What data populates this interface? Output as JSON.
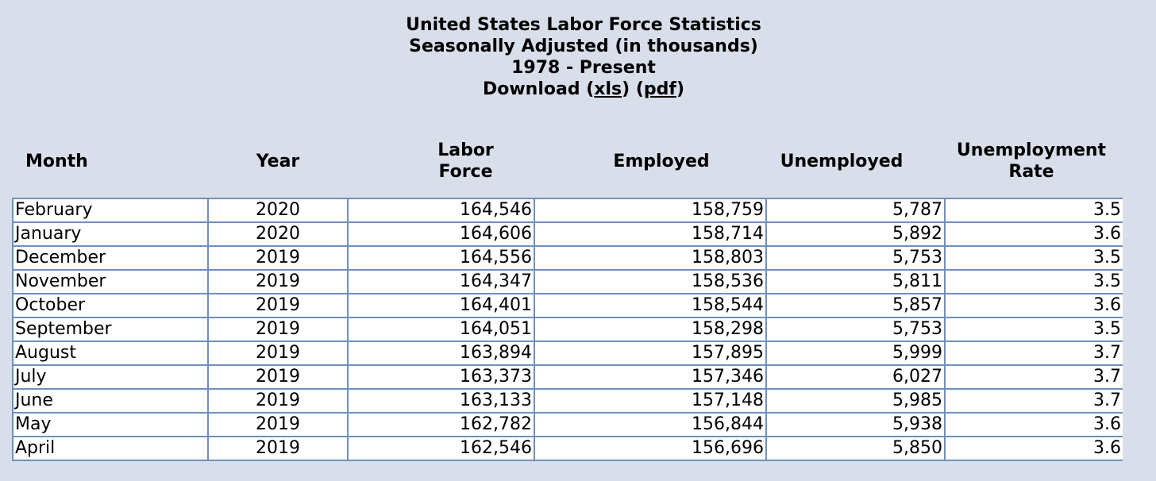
{
  "title": {
    "line1": "United States Labor Force Statistics",
    "line2": "Seasonally Adjusted  (in thousands)",
    "line3": "1978 - Present",
    "download_label": "Download",
    "xls_link": "xls",
    "pdf_link": "pdf"
  },
  "headers": {
    "month": "Month",
    "year": "Year",
    "labor_force_line1": "Labor",
    "labor_force_line2": "Force",
    "employed": "Employed",
    "unemployed": "Unemployed",
    "rate_line1": "Unemployment",
    "rate_line2": "Rate"
  },
  "rows": [
    {
      "month": "February",
      "year": "2020",
      "labor_force": "164,546",
      "employed": "158,759",
      "unemployed": "5,787",
      "rate": "3.5"
    },
    {
      "month": "January",
      "year": "2020",
      "labor_force": "164,606",
      "employed": "158,714",
      "unemployed": "5,892",
      "rate": "3.6"
    },
    {
      "month": "December",
      "year": "2019",
      "labor_force": "164,556",
      "employed": "158,803",
      "unemployed": "5,753",
      "rate": "3.5"
    },
    {
      "month": "November",
      "year": "2019",
      "labor_force": "164,347",
      "employed": "158,536",
      "unemployed": "5,811",
      "rate": "3.5"
    },
    {
      "month": "October",
      "year": "2019",
      "labor_force": "164,401",
      "employed": "158,544",
      "unemployed": "5,857",
      "rate": "3.6"
    },
    {
      "month": "September",
      "year": "2019",
      "labor_force": "164,051",
      "employed": "158,298",
      "unemployed": "5,753",
      "rate": "3.5"
    },
    {
      "month": "August",
      "year": "2019",
      "labor_force": "163,894",
      "employed": "157,895",
      "unemployed": "5,999",
      "rate": "3.7"
    },
    {
      "month": "July",
      "year": "2019",
      "labor_force": "163,373",
      "employed": "157,346",
      "unemployed": "6,027",
      "rate": "3.7"
    },
    {
      "month": "June",
      "year": "2019",
      "labor_force": "163,133",
      "employed": "157,148",
      "unemployed": "5,985",
      "rate": "3.7"
    },
    {
      "month": "May",
      "year": "2019",
      "labor_force": "162,782",
      "employed": "156,844",
      "unemployed": "5,938",
      "rate": "3.6"
    },
    {
      "month": "April",
      "year": "2019",
      "labor_force": "162,546",
      "employed": "156,696",
      "unemployed": "5,850",
      "rate": "3.6"
    }
  ]
}
